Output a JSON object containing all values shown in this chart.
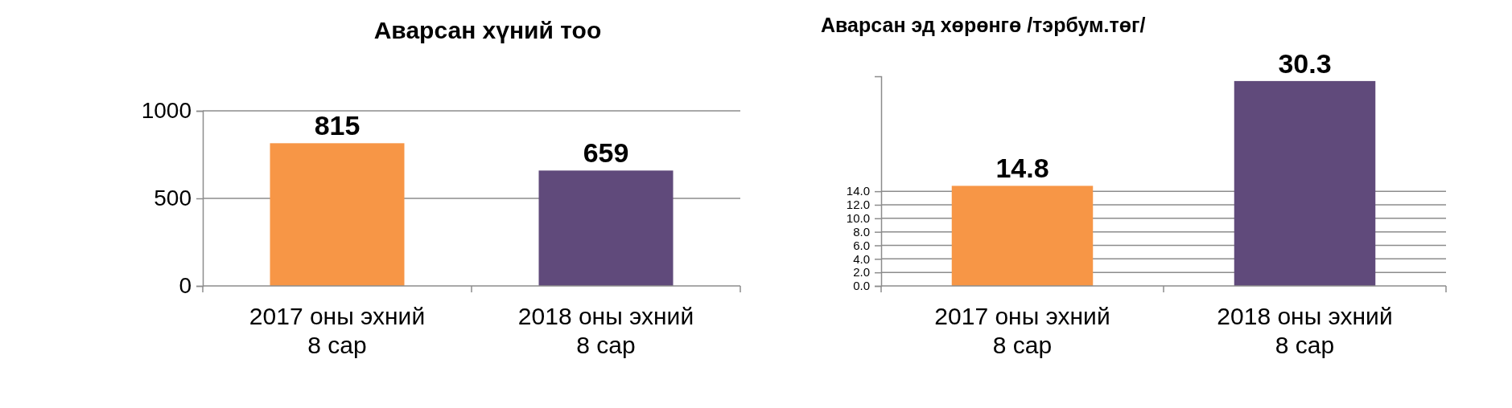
{
  "chart_data": [
    {
      "type": "bar",
      "title": "Аварсан хүний тоо",
      "categories": [
        "2017 оны эхний 8 сар",
        "2018 оны эхний 8 сар"
      ],
      "values": [
        815,
        659
      ],
      "colors": [
        "#f79646",
        "#604a7b"
      ],
      "ylim": [
        0,
        1000
      ],
      "yticks": [
        0,
        500,
        1000
      ],
      "grid": "y",
      "data_labels": true
    },
    {
      "type": "bar",
      "title": "Аварсан эд хөрөнгө /тэрбум.төг/",
      "categories": [
        "2017 оны эхний 8 сар",
        "2018 оны эхний 8 сар"
      ],
      "values": [
        14.8,
        30.3
      ],
      "colors": [
        "#f79646",
        "#604a7b"
      ],
      "ylim": [
        0,
        31
      ],
      "yticks": [
        {
          "value": 0,
          "label": "0.0"
        },
        {
          "value": 2,
          "label": "2.0"
        },
        {
          "value": 4,
          "label": "4.0"
        },
        {
          "value": 6,
          "label": "6.0"
        },
        {
          "value": 8,
          "label": "8.0"
        },
        {
          "value": 10,
          "label": "10.0"
        },
        {
          "value": 12,
          "label": "12.0"
        },
        {
          "value": 14,
          "label": "14.0"
        }
      ],
      "grid": "y",
      "data_labels": true
    }
  ]
}
